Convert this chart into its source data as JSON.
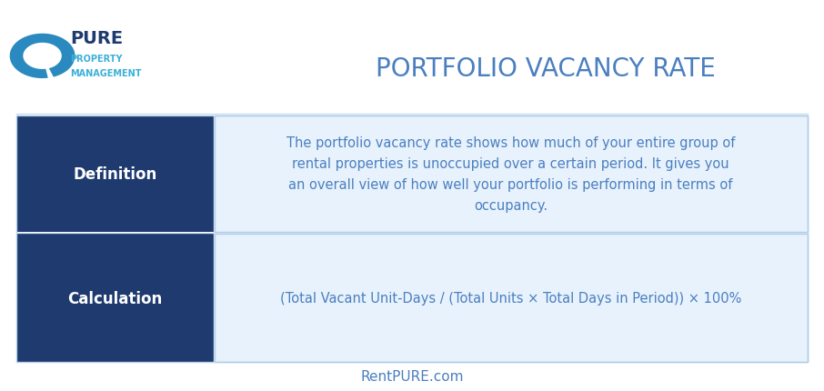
{
  "title": "PORTFOLIO VACANCY RATE",
  "title_color": "#4a7fc0",
  "title_fontsize": 20,
  "background_color": "#ffffff",
  "header_bg_color": "#1e3a6e",
  "header_text_color": "#ffffff",
  "content_bg_color": "#e8f2fc",
  "content_border_color": "#b0cce8",
  "row1_label": "Definition",
  "row1_text": "The portfolio vacancy rate shows how much of your entire group of\nrental properties is unoccupied over a certain period. It gives you\nan overall view of how well your portfolio is performing in terms of\noccupancy.",
  "row2_label": "Calculation",
  "row2_text": "(Total Vacant Unit-Days / (Total Units × Total Days in Period)) × 100%",
  "footer_text": "RentPURE.com",
  "footer_color": "#4a7fc0",
  "label_fontsize": 12,
  "content_fontsize": 10.5,
  "footer_fontsize": 11,
  "logo_arc_color": "#2a8abf",
  "logo_text_color": "#1e3a6e",
  "logo_sub_color": "#3ab0d8",
  "divider_color": "#c8ddf0",
  "table_border_color": "#b0cce8"
}
